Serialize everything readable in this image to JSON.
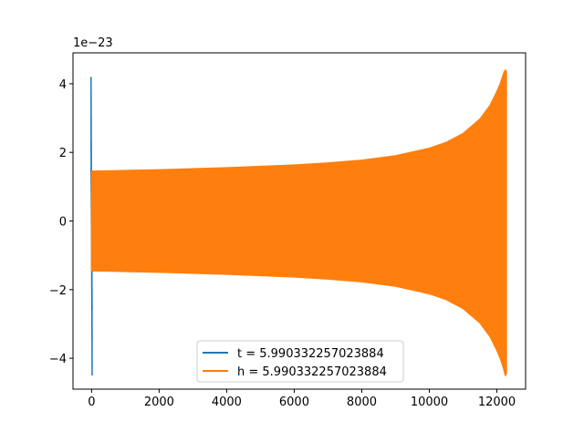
{
  "chart_data": {
    "type": "line",
    "title": "",
    "xlabel": "",
    "ylabel": "",
    "offset_text": "1e−23",
    "xlim": [
      -550,
      12850
    ],
    "ylim": [
      -4.9,
      4.9
    ],
    "x_ticks": [
      0,
      2000,
      4000,
      6000,
      8000,
      10000,
      12000
    ],
    "x_tick_labels": [
      "0",
      "2000",
      "4000",
      "6000",
      "8000",
      "10000",
      "12000"
    ],
    "y_ticks": [
      -4,
      -2,
      0,
      2,
      4
    ],
    "y_tick_labels": [
      "−4",
      "−2",
      "0",
      "2",
      "4"
    ],
    "grid": false,
    "legend_position": "lower center",
    "series": [
      {
        "name": "t = 5.990332257023884",
        "color": "#1f77b4",
        "shape": "spike",
        "x": [
          0,
          0,
          0,
          0,
          0,
          0,
          0,
          0,
          0,
          0
        ],
        "y": [
          4.2,
          -4.5,
          3.7,
          -4.2,
          3.0,
          -3.5,
          2.3,
          -2.6,
          1.5,
          -1.5
        ]
      },
      {
        "name": "h = 5.990332257023884",
        "color": "#ff7f0e",
        "shape": "envelope",
        "x": [
          0,
          1000,
          2000,
          3000,
          4000,
          5000,
          6000,
          7000,
          8000,
          9000,
          10000,
          10500,
          11000,
          11500,
          11800,
          12000,
          12100,
          12200,
          12250,
          12280
        ],
        "upper": [
          1.45,
          1.47,
          1.49,
          1.52,
          1.55,
          1.59,
          1.63,
          1.69,
          1.77,
          1.9,
          2.12,
          2.29,
          2.55,
          2.97,
          3.37,
          3.77,
          4.0,
          4.3,
          4.4,
          4.35
        ],
        "lower": [
          -1.45,
          -1.47,
          -1.49,
          -1.52,
          -1.55,
          -1.59,
          -1.63,
          -1.69,
          -1.77,
          -1.9,
          -2.12,
          -2.29,
          -2.55,
          -2.97,
          -3.37,
          -3.77,
          -4.0,
          -4.3,
          -4.5,
          -4.45
        ]
      }
    ]
  }
}
